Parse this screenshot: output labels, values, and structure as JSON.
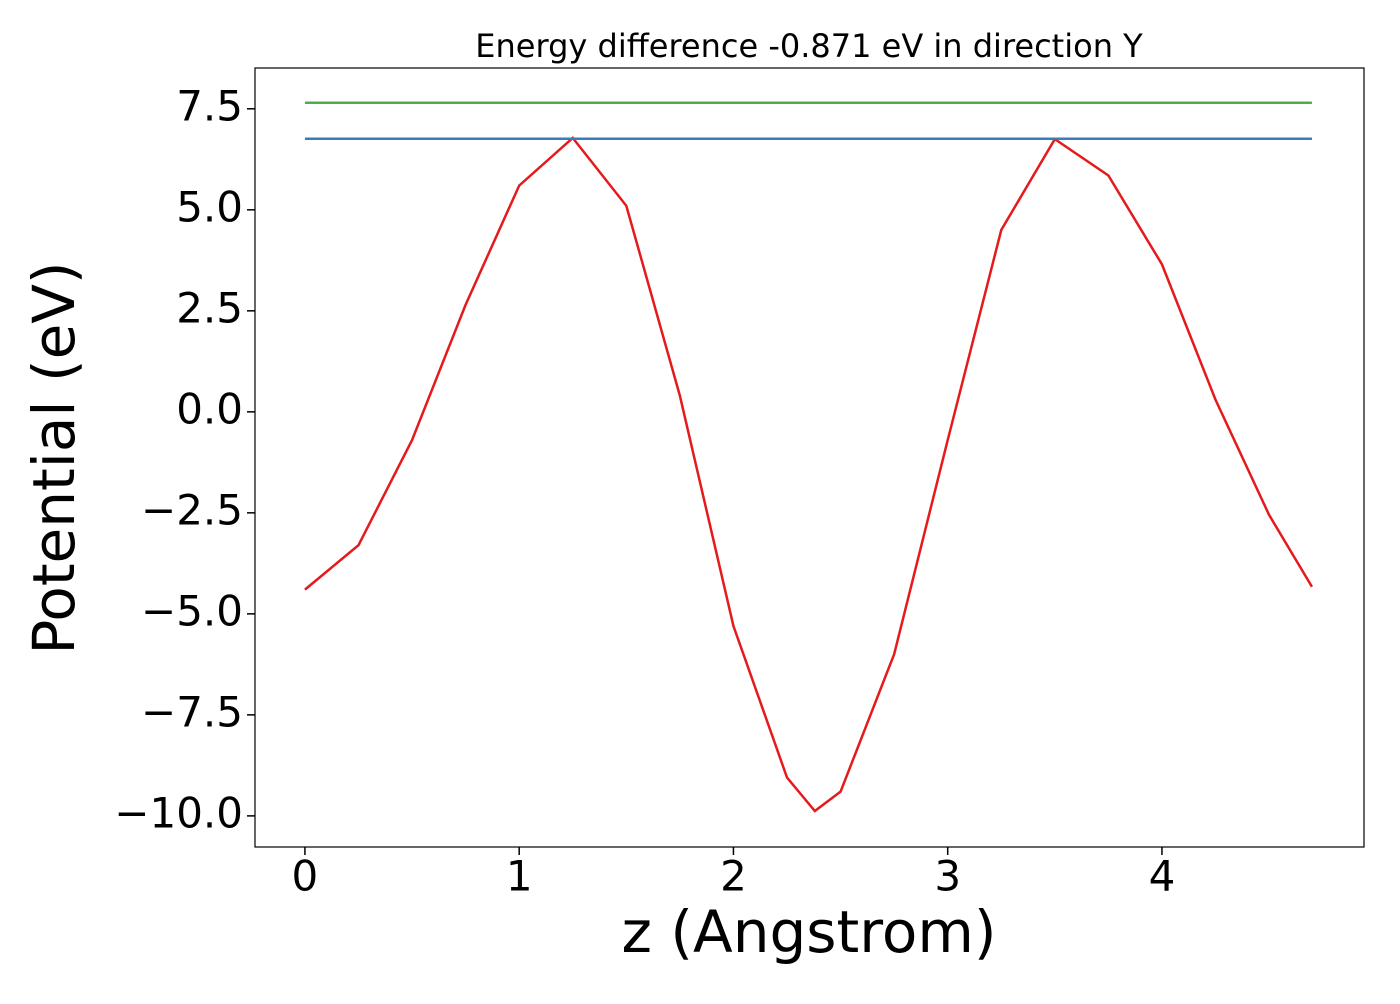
{
  "chart_data": {
    "type": "line",
    "title": "Energy difference -0.871 eV in direction Y",
    "x_label": "z (Angstrom)",
    "y_label": "Potential (eV)",
    "series": [
      {
        "color": "#e41a1c",
        "x": [
          0,
          0.25,
          0.5,
          0.75,
          1.0,
          1.25,
          1.5,
          1.75,
          2.0,
          2.25,
          2.38,
          2.5,
          2.75,
          3.0,
          3.25,
          3.5,
          3.75,
          4.0,
          4.25,
          4.5,
          4.7
        ],
        "values": [
          -4.4,
          -3.3,
          -0.7,
          2.65,
          5.6,
          6.78,
          5.1,
          0.4,
          -5.3,
          -9.05,
          -9.88,
          -9.4,
          -6.0,
          -0.7,
          4.5,
          6.75,
          5.85,
          3.65,
          0.3,
          -2.55,
          -4.33
        ]
      },
      {
        "color": "#377eb8",
        "x": [
          0,
          4.7
        ],
        "values": [
          6.76,
          6.76
        ]
      },
      {
        "color": "#4daf4a",
        "x": [
          0,
          4.7
        ],
        "values": [
          7.65,
          7.65
        ]
      }
    ],
    "xlim": [
      -0.233,
      4.943
    ],
    "ylim": [
      -10.77,
      8.51
    ],
    "xticks": [
      0,
      1,
      2,
      3,
      4
    ],
    "yticks": [
      {
        "value": -10,
        "label": "−10.0"
      },
      {
        "value": -7.5,
        "label": "−7.5"
      },
      {
        "value": -5,
        "label": "−5.0"
      },
      {
        "value": -2.5,
        "label": "−2.5"
      },
      {
        "value": 0,
        "label": "0.0"
      },
      2.5,
      {
        "value": 5,
        "label": "5.0"
      },
      7.5
    ]
  }
}
